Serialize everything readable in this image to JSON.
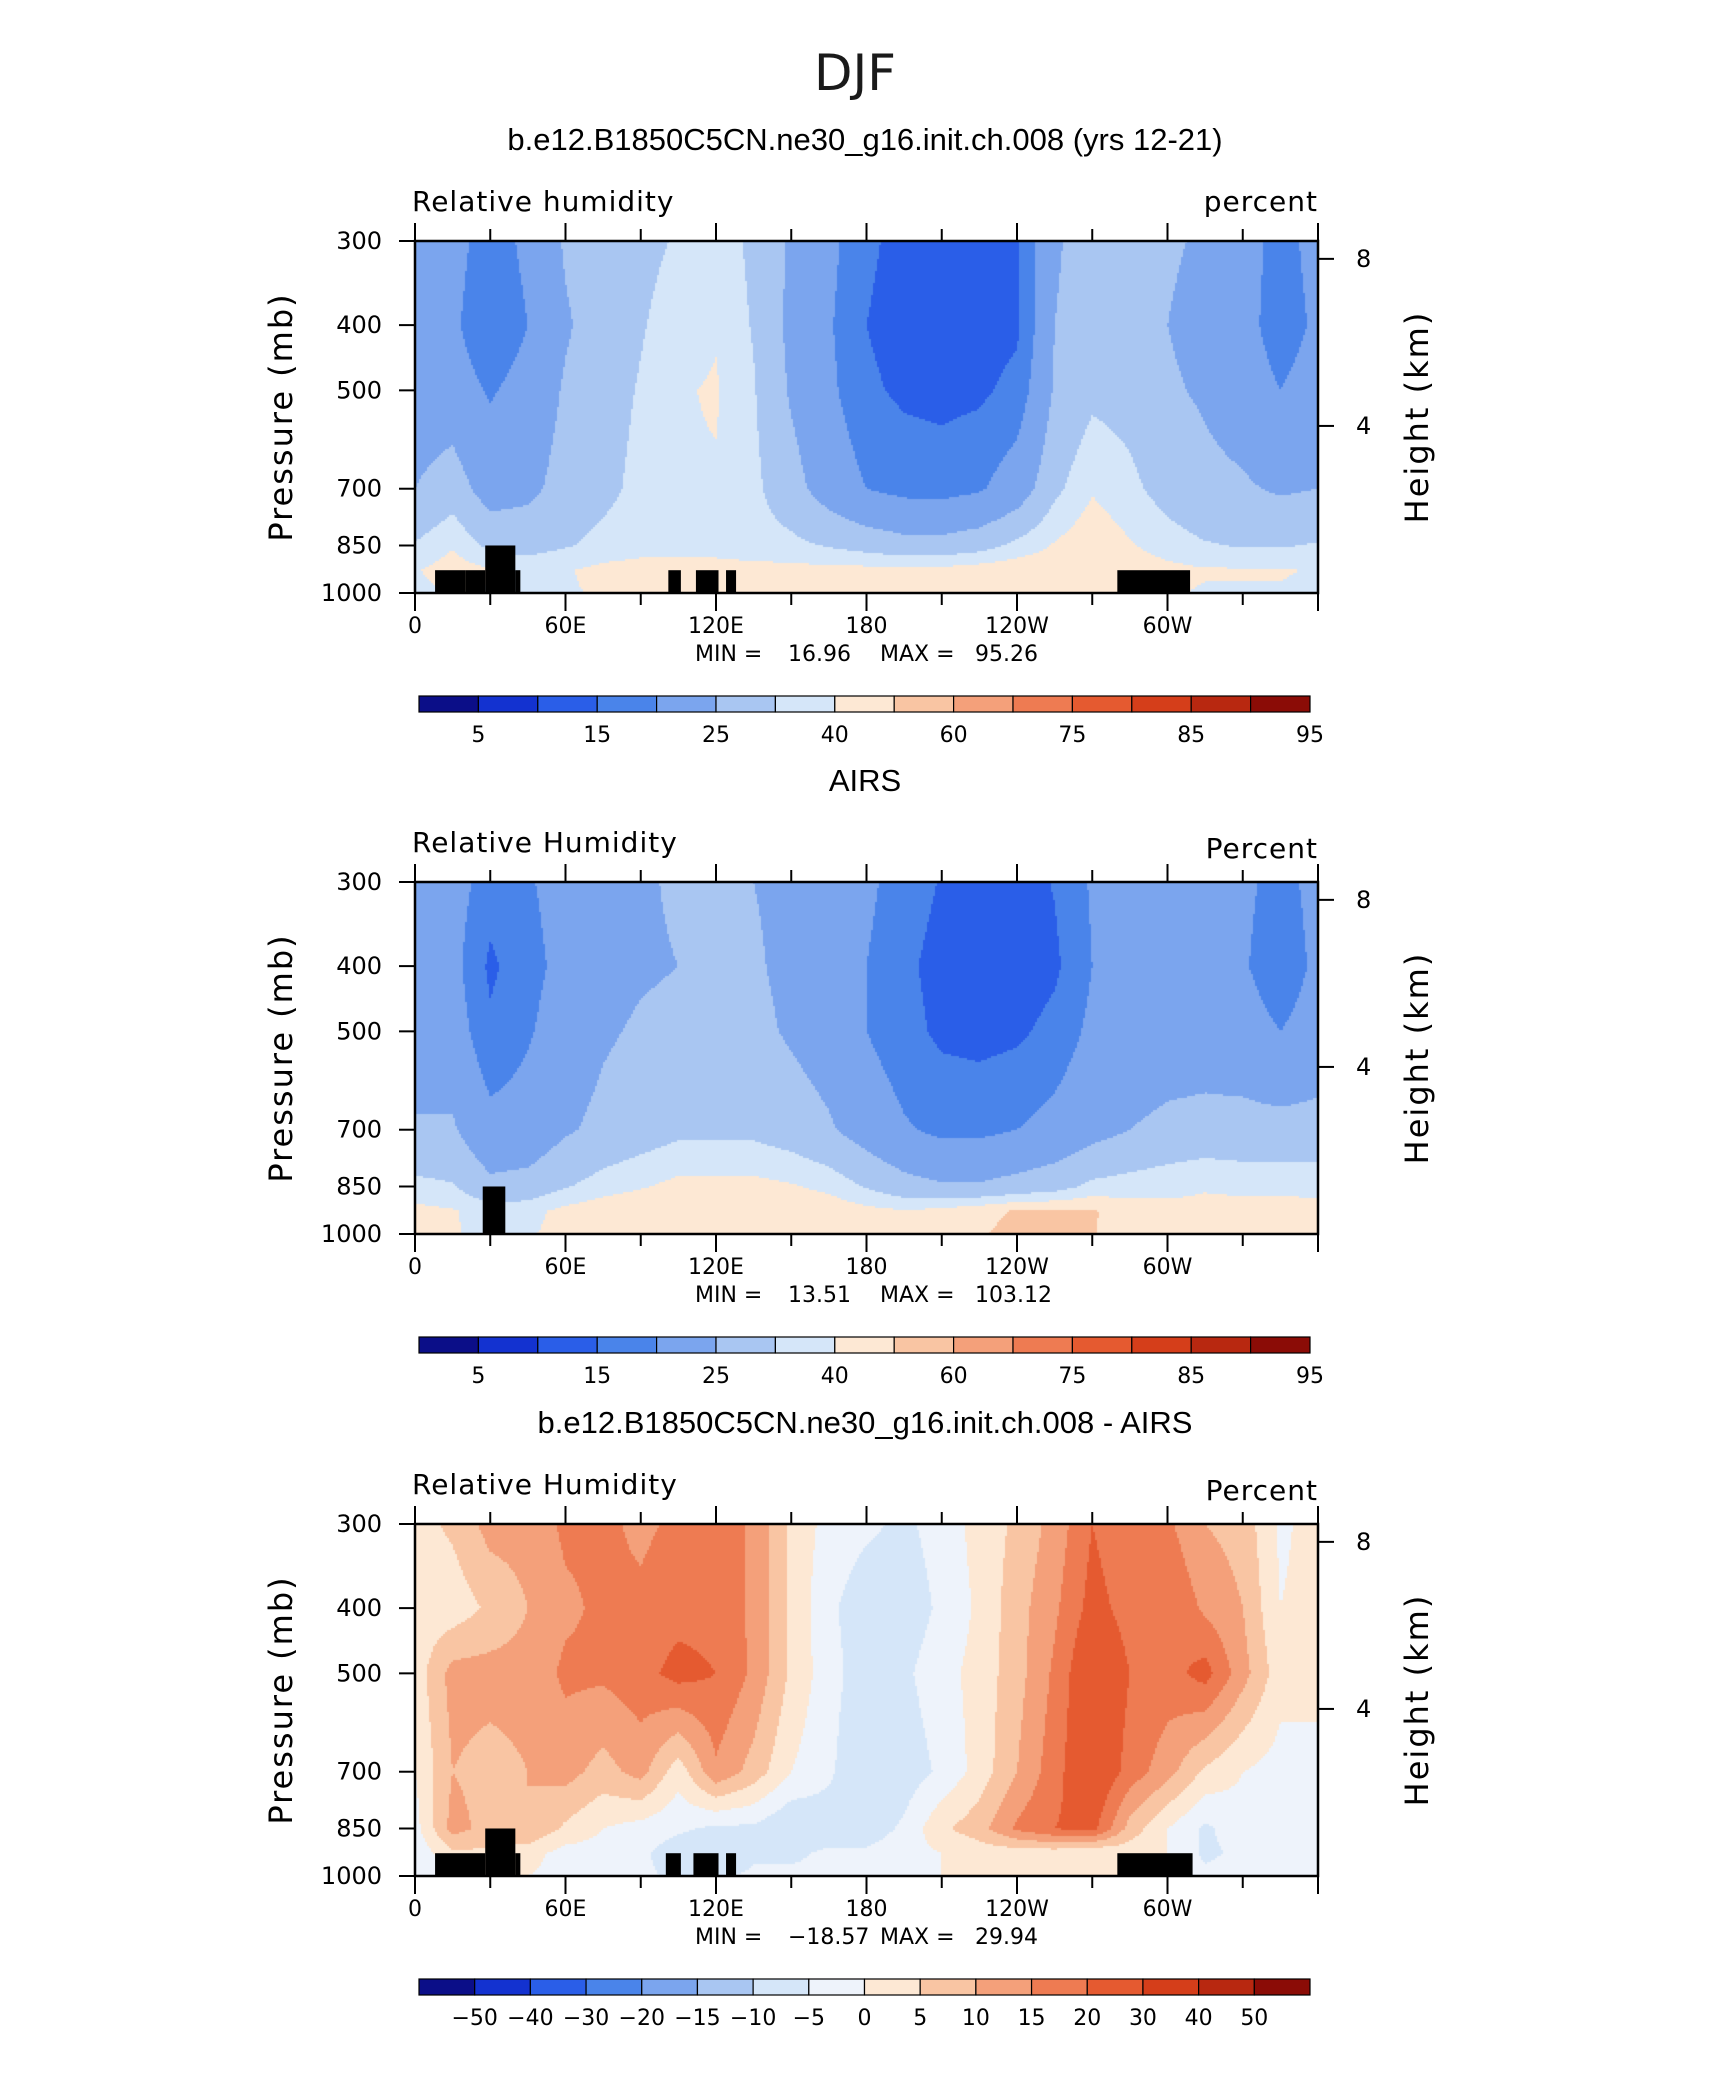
{
  "figure_title": "DJF",
  "chart_data": [
    {
      "type": "heatmap",
      "title": "b.e12.B1850C5CN.ne30_g16.init.ch.008 (yrs 12-21)",
      "left_label": "Relative humidity",
      "right_label": "percent",
      "ylabel": "Pressure (mb)",
      "y2label": "Height (km)",
      "x_ticks": [
        "0",
        "60E",
        "120E",
        "180",
        "120W",
        "60W"
      ],
      "x_tick_values": [
        0,
        60,
        120,
        180,
        240,
        300
      ],
      "xlim": [
        0,
        360
      ],
      "y_ticks": [
        300,
        400,
        500,
        700,
        850,
        1000
      ],
      "ylim": [
        1000,
        300
      ],
      "y_scale": "log",
      "y2_ticks": [
        "8",
        "4"
      ],
      "y2_tick_values": [
        8,
        4
      ],
      "min_label": "MIN =",
      "min_value": "16.96",
      "max_label": "MAX =",
      "max_value": "95.26",
      "colorbar": {
        "labels": [
          "5",
          "15",
          "25",
          "40",
          "60",
          "75",
          "85",
          "95"
        ],
        "colors": [
          "#0b0e88",
          "#1332d0",
          "#2a5ee8",
          "#4a84ea",
          "#7ba5ee",
          "#a9c6f2",
          "#d5e6f9",
          "#fde8d4",
          "#f9c5a3",
          "#f4a07a",
          "#ee7b52",
          "#e55a30",
          "#d53e1a",
          "#b82810",
          "#8b0c06"
        ]
      },
      "field": {
        "grid_lon": [
          0,
          15,
          30,
          45,
          60,
          75,
          90,
          105,
          120,
          135,
          150,
          165,
          180,
          195,
          210,
          225,
          240,
          255,
          270,
          285,
          300,
          315,
          330,
          345,
          360
        ],
        "grid_p": [
          300,
          400,
          500,
          700,
          850,
          925,
          1000
        ],
        "values": [
          [
            50,
            48,
            30,
            45,
            62,
            70,
            72,
            76,
            82,
            72,
            58,
            45,
            28,
            20,
            18,
            18,
            24,
            58,
            67,
            66,
            62,
            58,
            50,
            32,
            48
          ],
          [
            46,
            44,
            25,
            40,
            58,
            68,
            74,
            80,
            84,
            74,
            56,
            42,
            25,
            18,
            16,
            17,
            22,
            60,
            68,
            66,
            60,
            55,
            48,
            30,
            44
          ],
          [
            50,
            50,
            38,
            48,
            62,
            70,
            76,
            84,
            86,
            76,
            58,
            44,
            28,
            22,
            20,
            22,
            30,
            62,
            72,
            70,
            62,
            58,
            52,
            40,
            50
          ],
          [
            60,
            68,
            52,
            56,
            66,
            72,
            78,
            84,
            84,
            78,
            66,
            52,
            40,
            35,
            34,
            38,
            50,
            72,
            84,
            78,
            70,
            64,
            62,
            58,
            60
          ],
          [
            76,
            84,
            72,
            70,
            74,
            78,
            80,
            82,
            82,
            80,
            78,
            74,
            70,
            66,
            66,
            70,
            78,
            86,
            92,
            86,
            80,
            76,
            74,
            74,
            76
          ],
          [
            84,
            90,
            86,
            82,
            84,
            88,
            90,
            88,
            88,
            88,
            88,
            88,
            88,
            88,
            88,
            90,
            92,
            92,
            94,
            92,
            88,
            86,
            86,
            86,
            84
          ],
          [
            82,
            86,
            84,
            82,
            84,
            86,
            88,
            86,
            86,
            86,
            86,
            86,
            86,
            86,
            86,
            88,
            90,
            90,
            92,
            90,
            86,
            84,
            84,
            84,
            82
          ]
        ]
      },
      "topography": [
        {
          "lon": [
            8,
            20
          ],
          "p": 925
        },
        {
          "lon": [
            20,
            28
          ],
          "p": 925
        },
        {
          "lon": [
            28,
            40
          ],
          "p": 850
        },
        {
          "lon": [
            40,
            42
          ],
          "p": 925
        },
        {
          "lon": [
            101,
            106
          ],
          "p": 925
        },
        {
          "lon": [
            112,
            121
          ],
          "p": 925
        },
        {
          "lon": [
            124,
            128
          ],
          "p": 925
        },
        {
          "lon": [
            280,
            309
          ],
          "p": 925
        }
      ]
    },
    {
      "type": "heatmap",
      "title": "AIRS",
      "left_label": "Relative Humidity",
      "right_label": "Percent",
      "ylabel": "Pressure (mb)",
      "y2label": "Height (km)",
      "x_ticks": [
        "0",
        "60E",
        "120E",
        "180",
        "120W",
        "60W"
      ],
      "x_tick_values": [
        0,
        60,
        120,
        180,
        240,
        300
      ],
      "xlim": [
        0,
        360
      ],
      "y_ticks": [
        300,
        400,
        500,
        700,
        850,
        1000
      ],
      "ylim": [
        1000,
        300
      ],
      "y_scale": "log",
      "y2_ticks": [
        "8",
        "4"
      ],
      "y2_tick_values": [
        8,
        4
      ],
      "min_label": "MIN =",
      "min_value": "13.51",
      "max_label": "MAX =",
      "max_value": "103.12",
      "colorbar": {
        "labels": [
          "5",
          "15",
          "25",
          "40",
          "60",
          "75",
          "85",
          "95"
        ],
        "colors": [
          "#0b0e88",
          "#1332d0",
          "#2a5ee8",
          "#4a84ea",
          "#7ba5ee",
          "#a9c6f2",
          "#d5e6f9",
          "#fde8d4",
          "#f9c5a3",
          "#f4a07a",
          "#ee7b52",
          "#e55a30",
          "#d53e1a",
          "#b82810",
          "#8b0c06"
        ]
      },
      "field": {
        "grid_lon": [
          0,
          15,
          30,
          45,
          60,
          75,
          90,
          105,
          120,
          135,
          150,
          165,
          180,
          195,
          210,
          225,
          240,
          255,
          270,
          285,
          300,
          315,
          330,
          345,
          360
        ],
        "grid_p": [
          300,
          400,
          500,
          700,
          850,
          925,
          1000
        ],
        "values": [
          [
            48,
            48,
            32,
            38,
            48,
            55,
            58,
            62,
            62,
            60,
            56,
            50,
            44,
            32,
            24,
            22,
            18,
            26,
            42,
            45,
            46,
            48,
            44,
            34,
            46
          ],
          [
            46,
            46,
            22,
            34,
            46,
            54,
            58,
            60,
            62,
            62,
            56,
            50,
            40,
            28,
            20,
            17,
            15,
            22,
            40,
            44,
            46,
            46,
            42,
            30,
            44
          ],
          [
            50,
            50,
            28,
            38,
            50,
            58,
            62,
            64,
            66,
            64,
            58,
            52,
            40,
            30,
            22,
            20,
            22,
            30,
            44,
            48,
            50,
            50,
            48,
            40,
            48
          ],
          [
            62,
            62,
            46,
            48,
            58,
            64,
            68,
            72,
            72,
            72,
            68,
            62,
            52,
            42,
            36,
            36,
            40,
            46,
            54,
            60,
            64,
            66,
            66,
            66,
            66
          ],
          [
            78,
            76,
            64,
            66,
            74,
            80,
            84,
            88,
            88,
            88,
            86,
            82,
            74,
            66,
            62,
            62,
            66,
            70,
            78,
            80,
            82,
            84,
            82,
            82,
            82
          ],
          [
            88,
            86,
            80,
            82,
            88,
            92,
            94,
            95,
            95,
            95,
            94,
            92,
            88,
            86,
            88,
            92,
            96,
            96,
            96,
            90,
            88,
            88,
            90,
            90,
            88
          ],
          [
            86,
            86,
            82,
            84,
            88,
            90,
            92,
            92,
            92,
            92,
            92,
            90,
            88,
            86,
            88,
            94,
            98,
            98,
            96,
            88,
            86,
            86,
            88,
            88,
            86
          ]
        ]
      },
      "topography": [
        {
          "lon": [
            27,
            36
          ],
          "p": 850
        }
      ]
    },
    {
      "type": "heatmap",
      "title": "b.e12.B1850C5CN.ne30_g16.init.ch.008 - AIRS",
      "left_label": "Relative Humidity",
      "right_label": "Percent",
      "ylabel": "Pressure (mb)",
      "y2label": "Height (km)",
      "x_ticks": [
        "0",
        "60E",
        "120E",
        "180",
        "120W",
        "60W"
      ],
      "x_tick_values": [
        0,
        60,
        120,
        180,
        240,
        300
      ],
      "xlim": [
        0,
        360
      ],
      "y_ticks": [
        300,
        400,
        500,
        700,
        850,
        1000
      ],
      "ylim": [
        1000,
        300
      ],
      "y_scale": "log",
      "y2_ticks": [
        "8",
        "4"
      ],
      "y2_tick_values": [
        8,
        4
      ],
      "min_label": "MIN =",
      "min_value": "−18.57",
      "max_label": "MAX =",
      "max_value": "29.94",
      "colorbar": {
        "labels": [
          "−50",
          "−40",
          "−30",
          "−20",
          "−15",
          "−10",
          "−5",
          "0",
          "5",
          "10",
          "15",
          "20",
          "30",
          "40",
          "50"
        ],
        "colors": [
          "#0b0e88",
          "#1332d0",
          "#2a5ee8",
          "#4a84ea",
          "#7ba5ee",
          "#a9c6f2",
          "#d5e6f9",
          "#eef3fb",
          "#fde8d4",
          "#f9c5a3",
          "#f4a07a",
          "#ee7b52",
          "#e55a30",
          "#d53e1a",
          "#b82810",
          "#8b0c06"
        ]
      },
      "field": {
        "grid_lon": [
          0,
          15,
          30,
          45,
          60,
          75,
          90,
          105,
          120,
          135,
          150,
          165,
          180,
          195,
          210,
          225,
          240,
          255,
          270,
          285,
          300,
          315,
          330,
          345,
          360
        ],
        "grid_p": [
          300,
          400,
          500,
          700,
          850,
          925,
          1000
        ],
        "values": [
          [
            3,
            6,
            12,
            12,
            16,
            16,
            14,
            16,
            18,
            14,
            4,
            -2,
            -4,
            -6,
            -3,
            2,
            6,
            12,
            20,
            16,
            16,
            10,
            8,
            -1,
            2
          ],
          [
            2,
            2,
            6,
            10,
            14,
            16,
            16,
            18,
            18,
            14,
            4,
            -4,
            -8,
            -8,
            -4,
            1,
            8,
            14,
            22,
            18,
            20,
            14,
            10,
            0,
            2
          ],
          [
            2,
            12,
            12,
            12,
            16,
            16,
            18,
            22,
            20,
            14,
            4,
            -3,
            -8,
            -6,
            -2,
            2,
            8,
            16,
            26,
            20,
            18,
            22,
            12,
            2,
            4
          ],
          [
            0,
            10,
            8,
            10,
            12,
            8,
            12,
            2,
            14,
            8,
            0,
            -4,
            -10,
            -8,
            -4,
            2,
            10,
            18,
            26,
            18,
            12,
            4,
            0,
            -2,
            -4
          ],
          [
            -2,
            12,
            8,
            10,
            4,
            0,
            -2,
            -4,
            -6,
            -6,
            -10,
            -8,
            -8,
            -4,
            4,
            8,
            16,
            20,
            22,
            8,
            0,
            -6,
            -2,
            -4,
            -4
          ],
          [
            -4,
            4,
            4,
            2,
            -2,
            -2,
            -4,
            -8,
            -10,
            -6,
            -6,
            -4,
            -4,
            -2,
            0,
            2,
            2,
            2,
            0,
            2,
            0,
            -6,
            -4,
            -2,
            -2
          ],
          [
            -4,
            0,
            0,
            0,
            -2,
            -2,
            -4,
            -6,
            -6,
            -4,
            -4,
            -4,
            -4,
            -2,
            0,
            0,
            0,
            0,
            0,
            0,
            0,
            -4,
            -2,
            -2,
            -2
          ]
        ]
      },
      "topography": [
        {
          "lon": [
            8,
            28
          ],
          "p": 925
        },
        {
          "lon": [
            28,
            40
          ],
          "p": 850
        },
        {
          "lon": [
            40,
            42
          ],
          "p": 925
        },
        {
          "lon": [
            100,
            106
          ],
          "p": 925
        },
        {
          "lon": [
            111,
            121
          ],
          "p": 925
        },
        {
          "lon": [
            124,
            128
          ],
          "p": 925
        },
        {
          "lon": [
            280,
            310
          ],
          "p": 925
        }
      ]
    }
  ]
}
